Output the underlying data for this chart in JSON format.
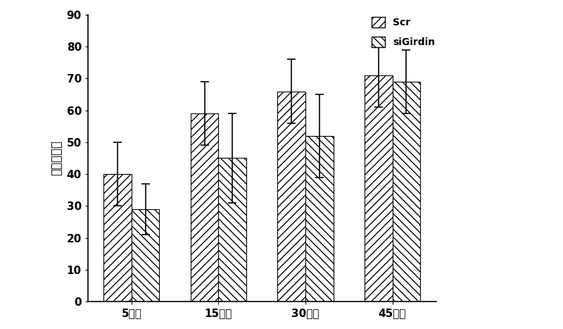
{
  "categories": [
    "5分钟",
    "15分钟",
    "30分钟",
    "45分钟"
  ],
  "scr_values": [
    40,
    59,
    66,
    71
  ],
  "siGirdin_values": [
    29,
    45,
    52,
    69
  ],
  "scr_errors": [
    10,
    10,
    10,
    10
  ],
  "siGirdin_errors": [
    8,
    14,
    13,
    10
  ],
  "ylabel": "粘附细胞数",
  "ylim": [
    0,
    90
  ],
  "yticks": [
    0,
    10,
    20,
    30,
    40,
    50,
    60,
    70,
    80,
    90
  ],
  "legend_labels": [
    "Scr",
    "siGirdin"
  ],
  "bar_width": 0.32,
  "background_color": "#ffffff",
  "hatch_scr": "///",
  "hatch_siGirdin": "\\\\\\",
  "bar_facecolor": "#ffffff",
  "edge_color": "#000000"
}
